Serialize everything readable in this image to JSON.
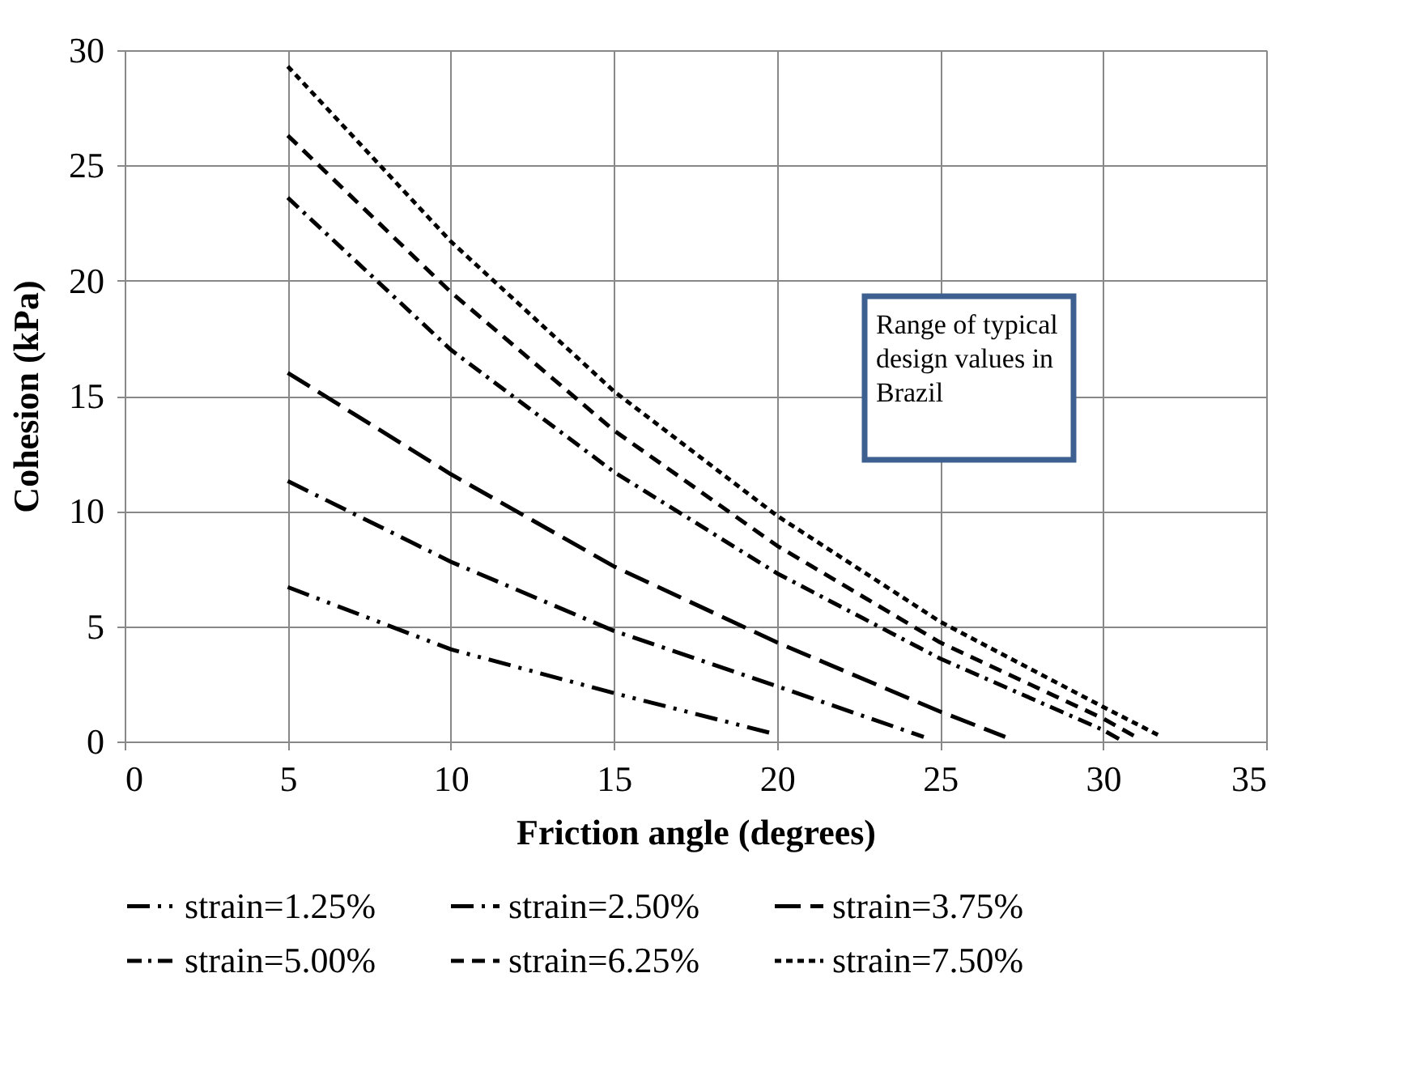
{
  "chart_data": {
    "type": "line",
    "xlabel": "Friction angle (degrees)",
    "ylabel": "Cohesion (kPa)",
    "xlim": [
      0,
      35
    ],
    "xticks": [
      0,
      5,
      10,
      15,
      20,
      25,
      30,
      35
    ],
    "ylim": [
      0,
      30
    ],
    "yticks": [
      0,
      5,
      10,
      15,
      20,
      25,
      30
    ],
    "grid": true,
    "legend": "bottom",
    "marker": "none",
    "annotations": [
      "Range of typical design values in Brazil"
    ],
    "series": [
      {
        "name": "strain=1.25%",
        "color": "#000000",
        "line_style": "dashed",
        "x": [
          5,
          10,
          15,
          20
        ],
        "values": [
          6.7,
          4.0,
          2.1,
          0.3
        ]
      },
      {
        "name": "strain=2.50%",
        "color": "#000000",
        "line_style": "dashed",
        "x": [
          5,
          10,
          15,
          20,
          24.5
        ],
        "values": [
          11.3,
          7.8,
          4.8,
          2.4,
          0.2
        ]
      },
      {
        "name": "strain=3.75%",
        "color": "#000000",
        "line_style": "dashed",
        "x": [
          5,
          10,
          15,
          20,
          25,
          27
        ],
        "values": [
          16.0,
          11.6,
          7.6,
          4.3,
          1.3,
          0.2
        ]
      },
      {
        "name": "strain=5.00%",
        "color": "#000000",
        "line_style": "dashed",
        "x": [
          5,
          10,
          15,
          20,
          25,
          30,
          30.5
        ],
        "values": [
          23.6,
          17.0,
          11.7,
          7.3,
          3.6,
          0.5,
          0.1
        ]
      },
      {
        "name": "strain=6.25%",
        "color": "#000000",
        "line_style": "dashed",
        "x": [
          5,
          10,
          15,
          20,
          25,
          30,
          31
        ],
        "values": [
          26.3,
          19.5,
          13.5,
          8.5,
          4.3,
          1.0,
          0.2
        ]
      },
      {
        "name": "strain=7.50%",
        "color": "#000000",
        "line_style": "dotted",
        "x": [
          5,
          10,
          15,
          20,
          25,
          30,
          31.8
        ],
        "values": [
          29.3,
          21.7,
          15.2,
          9.8,
          5.2,
          1.5,
          0.2
        ]
      }
    ]
  }
}
